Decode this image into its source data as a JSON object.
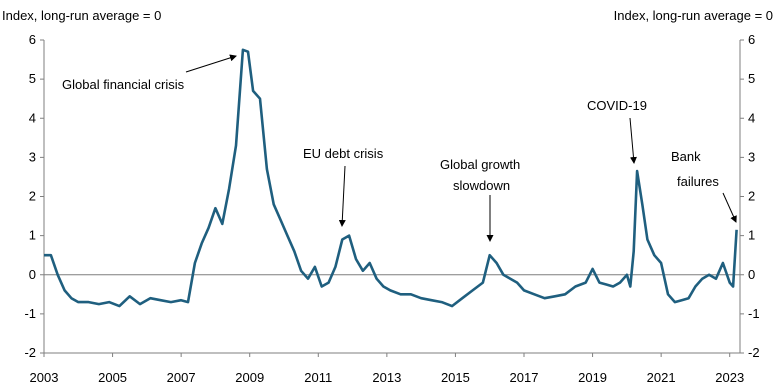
{
  "chart_data": {
    "type": "line",
    "left_axis_label": "Index, long-run average = 0",
    "right_axis_label": "Index, long-run average = 0",
    "ylim": [
      -2,
      6
    ],
    "yticks": [
      "-2",
      "-1",
      "0",
      "1",
      "2",
      "3",
      "4",
      "5",
      "6"
    ],
    "xlim": [
      2003,
      2023.3
    ],
    "xticks": [
      "2003",
      "2005",
      "2007",
      "2009",
      "2011",
      "2013",
      "2015",
      "2017",
      "2019",
      "2021",
      "2023"
    ],
    "grid": false,
    "zero_line": true,
    "line_color": "#1f5f7f",
    "annotations": [
      {
        "text": "Global financial crisis",
        "x": 2008.8,
        "y": 5.75
      },
      {
        "text": "EU debt crisis",
        "x": 2011.7,
        "y": 1.25
      },
      {
        "text": "Global growth slowdown",
        "x": 2016.0,
        "y": 0.9
      },
      {
        "text": "COVID-19",
        "x": 2020.2,
        "y": 2.85
      },
      {
        "text": "Bank failures",
        "x": 2023.1,
        "y": 1.35
      }
    ],
    "series": [
      {
        "x": [
          2003.0,
          2003.2,
          2003.4,
          2003.6,
          2003.8,
          2004.0,
          2004.3,
          2004.6,
          2004.9,
          2005.2,
          2005.5,
          2005.8,
          2006.1,
          2006.4,
          2006.7,
          2007.0,
          2007.2,
          2007.4,
          2007.6,
          2007.8,
          2008.0,
          2008.2,
          2008.4,
          2008.6,
          2008.8,
          2008.95,
          2009.1,
          2009.3,
          2009.5,
          2009.7,
          2009.9,
          2010.1,
          2010.3,
          2010.5,
          2010.7,
          2010.9,
          2011.1,
          2011.3,
          2011.5,
          2011.7,
          2011.9,
          2012.1,
          2012.3,
          2012.5,
          2012.7,
          2012.9,
          2013.1,
          2013.4,
          2013.7,
          2014.0,
          2014.3,
          2014.6,
          2014.9,
          2015.2,
          2015.5,
          2015.8,
          2016.0,
          2016.2,
          2016.4,
          2016.6,
          2016.8,
          2017.0,
          2017.3,
          2017.6,
          2017.9,
          2018.2,
          2018.5,
          2018.8,
          2019.0,
          2019.2,
          2019.4,
          2019.6,
          2019.8,
          2020.0,
          2020.1,
          2020.2,
          2020.3,
          2020.45,
          2020.6,
          2020.8,
          2021.0,
          2021.2,
          2021.4,
          2021.6,
          2021.8,
          2022.0,
          2022.2,
          2022.4,
          2022.6,
          2022.8,
          2023.0,
          2023.1,
          2023.2
        ],
        "y": [
          0.5,
          0.5,
          0.0,
          -0.4,
          -0.6,
          -0.7,
          -0.7,
          -0.75,
          -0.7,
          -0.8,
          -0.55,
          -0.75,
          -0.6,
          -0.65,
          -0.7,
          -0.65,
          -0.7,
          0.3,
          0.8,
          1.2,
          1.7,
          1.3,
          2.2,
          3.3,
          5.75,
          5.7,
          4.7,
          4.5,
          2.7,
          1.8,
          1.4,
          1.0,
          0.6,
          0.1,
          -0.1,
          0.2,
          -0.3,
          -0.2,
          0.2,
          0.9,
          1.0,
          0.4,
          0.1,
          0.3,
          -0.1,
          -0.3,
          -0.4,
          -0.5,
          -0.5,
          -0.6,
          -0.65,
          -0.7,
          -0.8,
          -0.6,
          -0.4,
          -0.2,
          0.5,
          0.3,
          0.0,
          -0.1,
          -0.2,
          -0.4,
          -0.5,
          -0.6,
          -0.55,
          -0.5,
          -0.3,
          -0.2,
          0.15,
          -0.2,
          -0.25,
          -0.3,
          -0.2,
          0.0,
          -0.3,
          0.6,
          2.65,
          1.8,
          0.9,
          0.5,
          0.3,
          -0.5,
          -0.7,
          -0.65,
          -0.6,
          -0.3,
          -0.1,
          0.0,
          -0.1,
          0.3,
          -0.2,
          -0.3,
          1.15
        ]
      }
    ]
  }
}
